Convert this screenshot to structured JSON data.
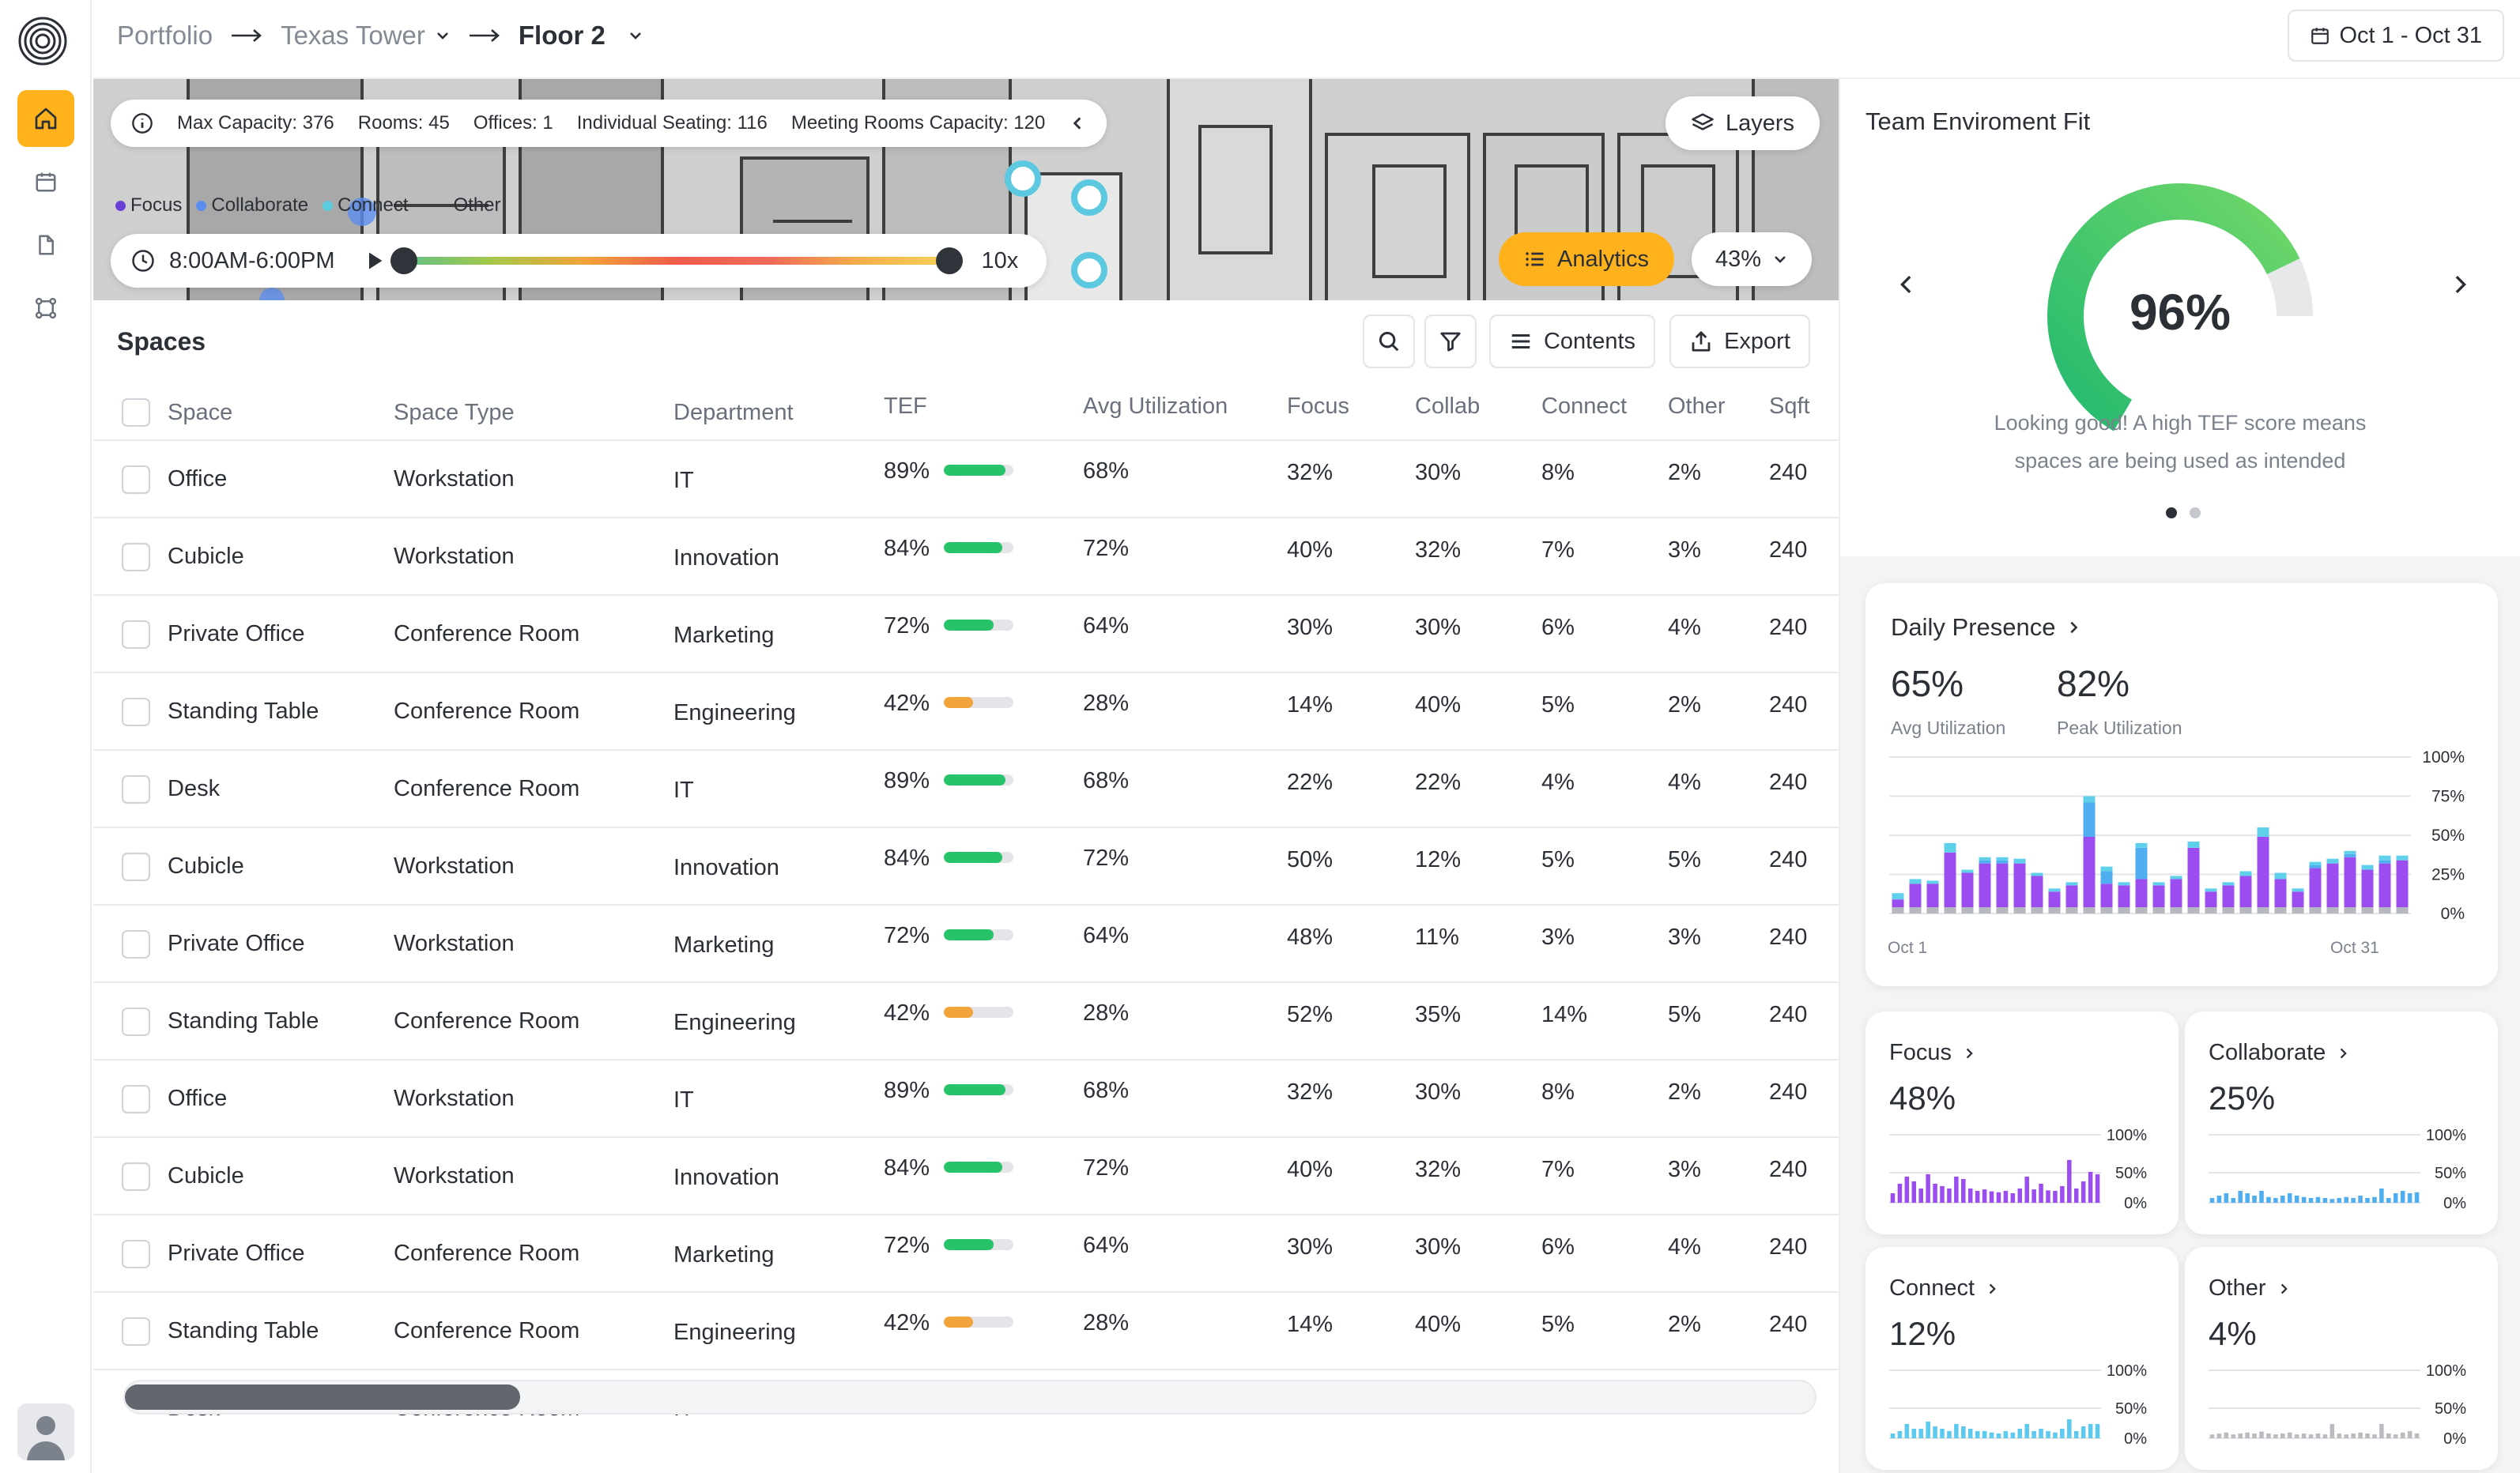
{
  "breadcrumb": {
    "portfolio": "Portfolio",
    "building": "Texas Tower",
    "floor": "Floor 2"
  },
  "date_range": "Oct 1 - Oct 31",
  "map_info": {
    "max_capacity": "Max Capacity: 376",
    "rooms": "Rooms: 45",
    "offices": "Offices: 1",
    "individual_seating": "Individual Seating: 116",
    "meeting_rooms": "Meeting Rooms Capacity: 120"
  },
  "legend": [
    {
      "label": "Focus",
      "color": "#6a3fd6"
    },
    {
      "label": "Collaborate",
      "color": "#5b8def"
    },
    {
      "label": "Connect",
      "color": "#5ccbe0"
    },
    {
      "label": "Other",
      "color": "#b5b8bd"
    }
  ],
  "time": {
    "range": "8:00AM-6:00PM",
    "speed": "10x"
  },
  "layers_label": "Layers",
  "analytics_label": "Analytics",
  "zoom_label": "43%",
  "spaces": {
    "title": "Spaces",
    "contents_label": "Contents",
    "export_label": "Export",
    "columns": [
      "Space",
      "Space Type",
      "Department",
      "TEF",
      "Avg Utilization",
      "Focus",
      "Collab",
      "Connect",
      "Other",
      "Sqft"
    ],
    "rows": [
      {
        "space": "Office",
        "type": "Workstation",
        "dept": "IT",
        "tef": "89%",
        "tef_value": 89,
        "util": "68%",
        "focus": "32%",
        "collab": "30%",
        "connect": "8%",
        "other": "2%",
        "sqft": "240"
      },
      {
        "space": "Cubicle",
        "type": "Workstation",
        "dept": "Innovation",
        "tef": "84%",
        "tef_value": 84,
        "util": "72%",
        "focus": "40%",
        "collab": "32%",
        "connect": "7%",
        "other": "3%",
        "sqft": "240"
      },
      {
        "space": "Private Office",
        "type": "Conference Room",
        "dept": "Marketing",
        "tef": "72%",
        "tef_value": 72,
        "util": "64%",
        "focus": "30%",
        "collab": "30%",
        "connect": "6%",
        "other": "4%",
        "sqft": "240"
      },
      {
        "space": "Standing Table",
        "type": "Conference Room",
        "dept": "Engineering",
        "tef": "42%",
        "tef_value": 42,
        "util": "28%",
        "focus": "14%",
        "collab": "40%",
        "connect": "5%",
        "other": "2%",
        "sqft": "240"
      },
      {
        "space": "Desk",
        "type": "Conference Room",
        "dept": "IT",
        "tef": "89%",
        "tef_value": 89,
        "util": "68%",
        "focus": "22%",
        "collab": "22%",
        "connect": "4%",
        "other": "4%",
        "sqft": "240"
      },
      {
        "space": "Cubicle",
        "type": "Workstation",
        "dept": "Innovation",
        "tef": "84%",
        "tef_value": 84,
        "util": "72%",
        "focus": "50%",
        "collab": "12%",
        "connect": "5%",
        "other": "5%",
        "sqft": "240"
      },
      {
        "space": "Private Office",
        "type": "Workstation",
        "dept": "Marketing",
        "tef": "72%",
        "tef_value": 72,
        "util": "64%",
        "focus": "48%",
        "collab": "11%",
        "connect": "3%",
        "other": "3%",
        "sqft": "240"
      },
      {
        "space": "Standing Table",
        "type": "Conference Room",
        "dept": "Engineering",
        "tef": "42%",
        "tef_value": 42,
        "util": "28%",
        "focus": "52%",
        "collab": "35%",
        "connect": "14%",
        "other": "5%",
        "sqft": "240"
      },
      {
        "space": "Office",
        "type": "Workstation",
        "dept": "IT",
        "tef": "89%",
        "tef_value": 89,
        "util": "68%",
        "focus": "32%",
        "collab": "30%",
        "connect": "8%",
        "other": "2%",
        "sqft": "240"
      },
      {
        "space": "Cubicle",
        "type": "Workstation",
        "dept": "Innovation",
        "tef": "84%",
        "tef_value": 84,
        "util": "72%",
        "focus": "40%",
        "collab": "32%",
        "connect": "7%",
        "other": "3%",
        "sqft": "240"
      },
      {
        "space": "Private Office",
        "type": "Conference Room",
        "dept": "Marketing",
        "tef": "72%",
        "tef_value": 72,
        "util": "64%",
        "focus": "30%",
        "collab": "30%",
        "connect": "6%",
        "other": "4%",
        "sqft": "240"
      },
      {
        "space": "Standing Table",
        "type": "Conference Room",
        "dept": "Engineering",
        "tef": "42%",
        "tef_value": 42,
        "util": "28%",
        "focus": "14%",
        "collab": "40%",
        "connect": "5%",
        "other": "2%",
        "sqft": "240"
      }
    ],
    "partial_row": {
      "space": "Desk",
      "type": "Conference Room",
      "dept": "IT"
    }
  },
  "tef_panel": {
    "title": "Team Enviroment Fit",
    "score": "96%",
    "score_value": 96,
    "message_line1": "Looking good! A high TEF score means",
    "message_line2": "spaces are being used as intended",
    "colors": {
      "gauge_start": "#1fb870",
      "gauge_end": "#74d968",
      "gauge_track": "#e7e8ea"
    }
  },
  "daily_presence": {
    "title": "Daily Presence",
    "avg_value": "65%",
    "avg_label": "Avg Utilization",
    "peak_value": "82%",
    "peak_label": "Peak Utilization",
    "x_start": "Oct 1",
    "x_end": "Oct 31",
    "y_ticks": [
      "100%",
      "75%",
      "50%",
      "25%",
      "0%"
    ]
  },
  "mini_cards": [
    {
      "title": "Focus",
      "value": "48%",
      "color": "#9b4df0",
      "ticks": [
        "100%",
        "50%",
        "0%"
      ]
    },
    {
      "title": "Collaborate",
      "value": "25%",
      "color": "#4eaef0",
      "ticks": [
        "100%",
        "50%",
        "0%"
      ]
    },
    {
      "title": "Connect",
      "value": "12%",
      "color": "#5cc9ee",
      "ticks": [
        "100%",
        "50%",
        "0%"
      ]
    },
    {
      "title": "Other",
      "value": "4%",
      "color": "#b8bbbf",
      "ticks": [
        "100%",
        "50%",
        "0%"
      ]
    }
  ],
  "chart_data": [
    {
      "type": "bar",
      "title": "Daily Presence",
      "x_start": "Oct 1",
      "x_end": "Oct 31",
      "ylim": [
        0,
        100
      ],
      "series": [
        {
          "name": "Focus",
          "values": [
            5,
            15,
            15,
            35,
            22,
            28,
            28,
            28,
            20,
            10,
            14,
            45,
            15,
            14,
            18,
            14,
            18,
            38,
            10,
            14,
            20,
            45,
            18,
            10,
            25,
            28,
            32,
            24,
            28,
            30
          ]
        },
        {
          "name": "Collaborate",
          "values": [
            0,
            0,
            0,
            0,
            0,
            2,
            2,
            0,
            0,
            0,
            0,
            22,
            8,
            0,
            20,
            0,
            0,
            0,
            0,
            0,
            0,
            0,
            0,
            0,
            2,
            0,
            2,
            0,
            2,
            0
          ]
        },
        {
          "name": "Connect",
          "values": [
            4,
            3,
            2,
            6,
            2,
            2,
            2,
            3,
            2,
            2,
            2,
            4,
            3,
            2,
            3,
            2,
            2,
            4,
            2,
            2,
            3,
            6,
            4,
            2,
            2,
            3,
            2,
            3,
            3,
            3
          ]
        },
        {
          "name": "Other",
          "values": [
            4,
            4,
            4,
            4,
            4,
            4,
            4,
            4,
            4,
            4,
            4,
            4,
            4,
            4,
            4,
            4,
            4,
            4,
            4,
            4,
            4,
            4,
            4,
            4,
            4,
            4,
            4,
            4,
            4,
            4
          ]
        }
      ]
    },
    {
      "type": "bar",
      "name": "Focus",
      "ylim": [
        0,
        100
      ],
      "values": [
        20,
        40,
        55,
        45,
        30,
        60,
        40,
        35,
        30,
        55,
        50,
        30,
        25,
        28,
        24,
        22,
        25,
        20,
        30,
        55,
        28,
        40,
        26,
        25,
        35,
        90,
        30,
        45,
        65,
        60
      ]
    },
    {
      "type": "bar",
      "name": "Collaborate",
      "ylim": [
        0,
        100
      ],
      "values": [
        10,
        15,
        20,
        10,
        25,
        20,
        15,
        25,
        12,
        10,
        15,
        20,
        15,
        12,
        10,
        12,
        10,
        8,
        10,
        12,
        10,
        15,
        10,
        12,
        30,
        10,
        20,
        25,
        20,
        22
      ]
    },
    {
      "type": "bar",
      "name": "Connect",
      "ylim": [
        0,
        100
      ],
      "values": [
        10,
        15,
        30,
        20,
        20,
        35,
        25,
        20,
        15,
        30,
        25,
        20,
        15,
        15,
        12,
        10,
        15,
        12,
        20,
        30,
        15,
        20,
        15,
        12,
        20,
        40,
        15,
        25,
        30,
        30
      ]
    },
    {
      "type": "bar",
      "name": "Other",
      "ylim": [
        0,
        100
      ],
      "values": [
        8,
        10,
        12,
        8,
        10,
        12,
        10,
        14,
        10,
        8,
        10,
        12,
        8,
        10,
        8,
        10,
        8,
        30,
        10,
        8,
        10,
        12,
        10,
        8,
        30,
        10,
        8,
        12,
        15,
        10
      ]
    }
  ]
}
